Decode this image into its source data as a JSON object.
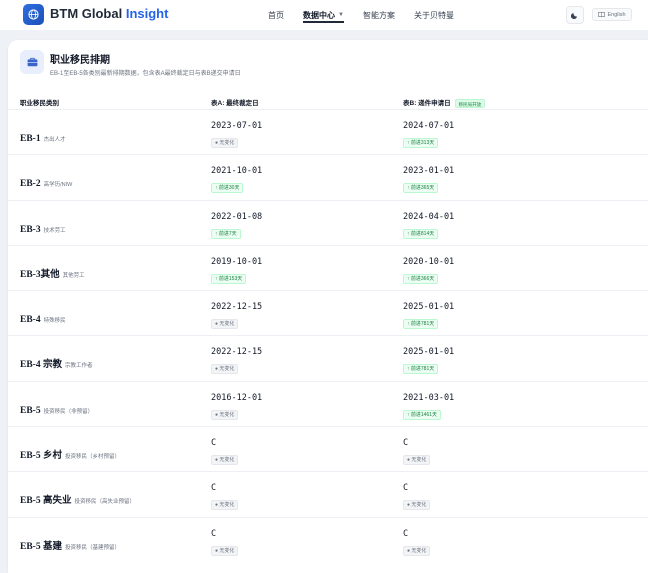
{
  "header": {
    "brand_main": "BTM Global",
    "brand_accent": "Insight",
    "nav": [
      {
        "label": "首页",
        "active": false
      },
      {
        "label": "数据中心",
        "active": true
      },
      {
        "label": "智能方案",
        "active": false
      },
      {
        "label": "关于贝特曼",
        "active": false
      }
    ],
    "lang_label": "English",
    "icons": {
      "logo": "globe-icon",
      "theme": "moon-icon",
      "lang": "language-icon"
    }
  },
  "card": {
    "title": "职业移民排期",
    "subtitle": "EB-1至EB-5各类别最新排期数据，包含表A最终裁定日与表B递交申请日",
    "icon": "briefcase-icon",
    "columns": {
      "category": "职业移民类别",
      "table_a": "表A: 最终裁定日",
      "table_b": "表B: 递件申请日",
      "table_b_tag": "移民局开放"
    },
    "rows": [
      {
        "name": "EB-1",
        "sub": "杰出人才",
        "a_date": "2023-07-01",
        "a_badge": "无变化",
        "a_type": "nochange",
        "b_date": "2024-07-01",
        "b_badge": "前进313天",
        "b_type": "forward"
      },
      {
        "name": "EB-2",
        "sub": "高学历/NIW",
        "a_date": "2021-10-01",
        "a_badge": "前进30天",
        "a_type": "forward",
        "b_date": "2023-01-01",
        "b_badge": "前进365天",
        "b_type": "forward"
      },
      {
        "name": "EB-3",
        "sub": "技术劳工",
        "a_date": "2022-01-08",
        "a_badge": "前进7天",
        "a_type": "forward",
        "b_date": "2024-04-01",
        "b_badge": "前进814天",
        "b_type": "forward"
      },
      {
        "name": "EB-3其他",
        "sub": "其他劳工",
        "a_date": "2019-10-01",
        "a_badge": "前进153天",
        "a_type": "forward",
        "b_date": "2020-10-01",
        "b_badge": "前进366天",
        "b_type": "forward"
      },
      {
        "name": "EB-4",
        "sub": "特殊移民",
        "a_date": "2022-12-15",
        "a_badge": "无变化",
        "a_type": "nochange",
        "b_date": "2025-01-01",
        "b_badge": "前进781天",
        "b_type": "forward"
      },
      {
        "name": "EB-4 宗教",
        "sub": "宗教工作者",
        "a_date": "2022-12-15",
        "a_badge": "无变化",
        "a_type": "nochange",
        "b_date": "2025-01-01",
        "b_badge": "前进781天",
        "b_type": "forward"
      },
      {
        "name": "EB-5",
        "sub": "投资移民（非预留）",
        "a_date": "2016-12-01",
        "a_badge": "无变化",
        "a_type": "nochange",
        "b_date": "2021-03-01",
        "b_badge": "前进1461天",
        "b_type": "forward"
      },
      {
        "name": "EB-5 乡村",
        "sub": "投资移民（乡村预留）",
        "a_date": "C",
        "a_badge": "无变化",
        "a_type": "nochange",
        "b_date": "C",
        "b_badge": "无变化",
        "b_type": "nochange"
      },
      {
        "name": "EB-5 高失业",
        "sub": "投资移民（高失业预留）",
        "a_date": "C",
        "a_badge": "无变化",
        "a_type": "nochange",
        "b_date": "C",
        "b_badge": "无变化",
        "b_type": "nochange"
      },
      {
        "name": "EB-5 基建",
        "sub": "投资移民（基建预留）",
        "a_date": "C",
        "a_badge": "无变化",
        "a_type": "nochange",
        "b_date": "C",
        "b_badge": "无变化",
        "b_type": "nochange"
      }
    ]
  }
}
